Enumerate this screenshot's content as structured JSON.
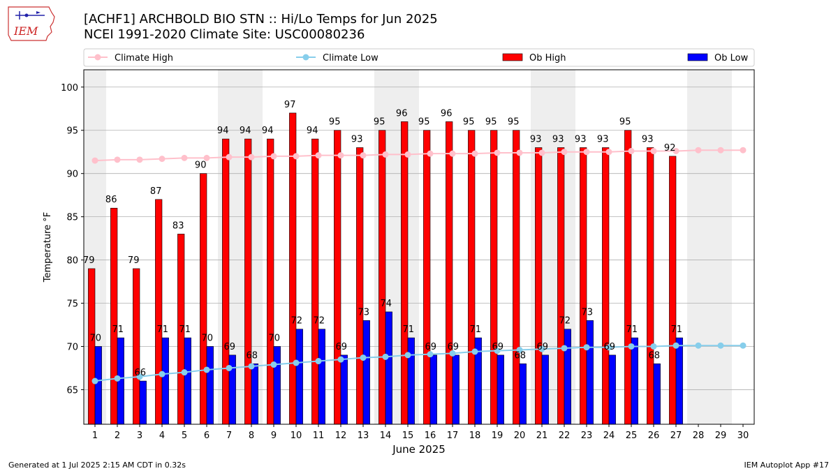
{
  "title_line1": "[ACHF1] ARCHBOLD BIO STN :: Hi/Lo Temps for Jun 2025",
  "title_line2": "NCEI 1991-2020 Climate Site: USC00080236",
  "logo_text": "IEM",
  "footer_left": "Generated at 1 Jul 2025 2:15 AM CDT in 0.32s",
  "footer_right": "IEM Autoplot App #17",
  "colors": {
    "ob_high": "#ff0000",
    "ob_low": "#0000ff",
    "climate_high": "#ffc0cb",
    "climate_low": "#87ceeb",
    "weekend_band": "#eeeeee",
    "grid": "#b0b0b0"
  },
  "chart_data": {
    "type": "bar",
    "xlabel": "June 2025",
    "ylabel": "Temperature °F",
    "ylim": [
      61,
      102
    ],
    "yticks": [
      65,
      70,
      75,
      80,
      85,
      90,
      95,
      100
    ],
    "grid": "horizontal",
    "legend_position": "top",
    "categories": [
      "1",
      "2",
      "3",
      "4",
      "5",
      "6",
      "7",
      "8",
      "9",
      "10",
      "11",
      "12",
      "13",
      "14",
      "15",
      "16",
      "17",
      "18",
      "19",
      "20",
      "21",
      "22",
      "23",
      "24",
      "25",
      "26",
      "27",
      "28",
      "29",
      "30"
    ],
    "weekend_day_ranges": [
      [
        1,
        1
      ],
      [
        7,
        8
      ],
      [
        14,
        15
      ],
      [
        21,
        22
      ],
      [
        28,
        29
      ]
    ],
    "series": [
      {
        "name": "Climate High",
        "type": "line",
        "values": [
          91.5,
          91.6,
          91.6,
          91.7,
          91.8,
          91.8,
          91.9,
          91.9,
          92.0,
          92.0,
          92.1,
          92.1,
          92.1,
          92.2,
          92.2,
          92.3,
          92.3,
          92.3,
          92.4,
          92.4,
          92.4,
          92.5,
          92.5,
          92.5,
          92.6,
          92.6,
          92.6,
          92.7,
          92.7,
          92.7
        ]
      },
      {
        "name": "Climate Low",
        "type": "line",
        "values": [
          66.0,
          66.3,
          66.5,
          66.8,
          67.0,
          67.3,
          67.5,
          67.7,
          67.9,
          68.1,
          68.3,
          68.5,
          68.7,
          68.8,
          69.0,
          69.1,
          69.2,
          69.4,
          69.5,
          69.6,
          69.7,
          69.8,
          69.9,
          69.9,
          70.0,
          70.0,
          70.1,
          70.1,
          70.1,
          70.1
        ]
      },
      {
        "name": "Ob High",
        "type": "bar",
        "values": [
          79,
          86,
          79,
          87,
          83,
          90,
          94,
          94,
          94,
          97,
          94,
          95,
          93,
          95,
          96,
          95,
          96,
          95,
          95,
          95,
          93,
          93,
          93,
          93,
          95,
          93,
          92,
          null,
          null,
          null
        ]
      },
      {
        "name": "Ob Low",
        "type": "bar",
        "values": [
          70,
          71,
          66,
          71,
          71,
          70,
          69,
          68,
          70,
          72,
          72,
          69,
          73,
          74,
          71,
          69,
          69,
          71,
          69,
          68,
          69,
          72,
          73,
          69,
          71,
          68,
          71,
          null,
          null,
          null
        ]
      }
    ]
  }
}
